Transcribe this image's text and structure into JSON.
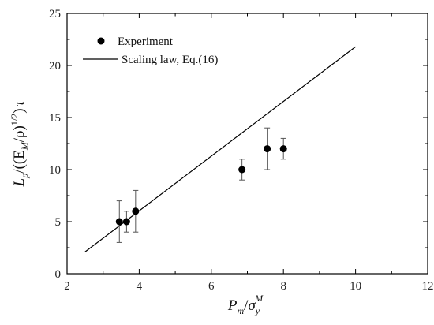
{
  "chart_data": {
    "type": "scatter",
    "title": "",
    "xlim": [
      2,
      12
    ],
    "ylim": [
      0,
      25
    ],
    "x_ticks": [
      2,
      4,
      6,
      8,
      10,
      12
    ],
    "y_ticks": [
      0,
      5,
      10,
      15,
      20,
      25
    ],
    "grid": false,
    "legend_position": "top-left",
    "xlabel": {
      "main": "P",
      "sub": "m",
      "slash": "/",
      "sigma": "σ",
      "sigma_sub": "y",
      "sigma_sup": "M"
    },
    "ylabel": {
      "L": "L",
      "L_sub": "p",
      "mid": "/((E",
      "E_sub": "M",
      "rho": "/ρ)",
      "close": ")",
      "sup": "1/2",
      "tau": "τ"
    },
    "series": [
      {
        "name": "Experiment",
        "kind": "points",
        "color": "#000000",
        "points": [
          {
            "x": 3.45,
            "y": 5,
            "err_low": 3,
            "err_high": 7
          },
          {
            "x": 3.65,
            "y": 5,
            "err_low": 4,
            "err_high": 6
          },
          {
            "x": 3.9,
            "y": 6,
            "err_low": 4,
            "err_high": 8
          },
          {
            "x": 6.85,
            "y": 10,
            "err_low": 9,
            "err_high": 11
          },
          {
            "x": 7.55,
            "y": 12,
            "err_low": 10,
            "err_high": 14
          },
          {
            "x": 8.0,
            "y": 12,
            "err_low": 11,
            "err_high": 13
          }
        ]
      },
      {
        "name": "Scaling law, Eq.(16)",
        "kind": "line",
        "color": "#000000",
        "points": [
          {
            "x": 2.5,
            "y": 2.1
          },
          {
            "x": 10.0,
            "y": 21.8
          }
        ]
      }
    ]
  }
}
